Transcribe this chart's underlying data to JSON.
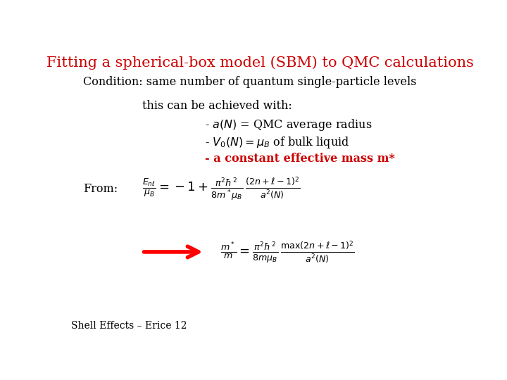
{
  "title": "Fitting a spherical-box model (SBM) to QMC calculations",
  "title_color": "#cc0000",
  "title_fontsize": 15,
  "bg_color": "#ffffff",
  "condition_text": "Condition: same number of quantum single-particle levels",
  "condition_fontsize": 11.5,
  "achieved_text": "this can be achieved with:",
  "achieved_fontsize": 11.5,
  "bullet1": "- $a(N)$ = QMC average radius",
  "bullet2": "- $V_0(N) = \\mu_B$ of bulk liquid",
  "bullet3_color": "#cc0000",
  "bullet_fontsize": 11.5,
  "from_label": "From:",
  "formula_fontsize": 13,
  "footer_text": "Shell Effects – Erice 12",
  "footer_fontsize": 10
}
